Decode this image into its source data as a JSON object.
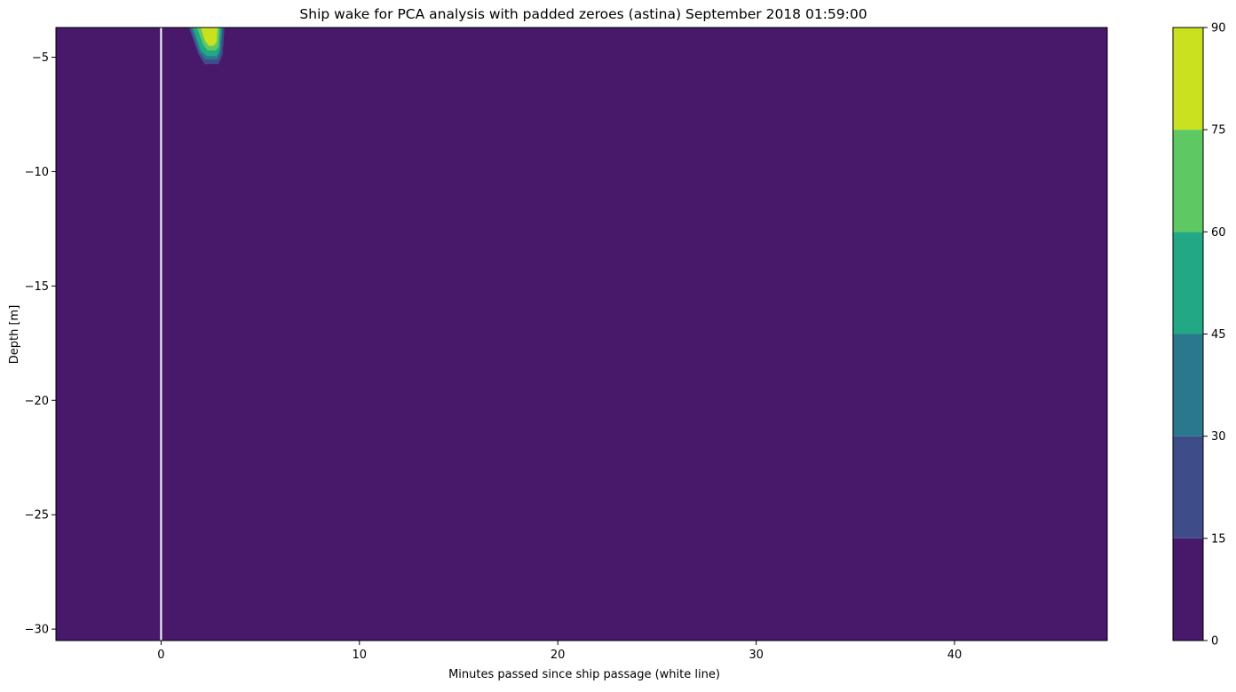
{
  "chart_data": {
    "type": "contourf",
    "title": "Ship wake for PCA analysis with padded zeroes (astina) September 2018 01:59:00",
    "xlabel": "Minutes passed since ship passage (white line)",
    "ylabel": "Depth [m]",
    "xlim": [
      -5.3,
      47.7
    ],
    "ylim": [
      -30.5,
      -3.7
    ],
    "x_ticks": [
      0,
      10,
      20,
      30,
      40
    ],
    "x_tick_labels": [
      "0",
      "10",
      "20",
      "30",
      "40"
    ],
    "y_ticks": [
      -5,
      -10,
      -15,
      -20,
      -25,
      -30
    ],
    "y_tick_labels": [
      "−5",
      "−10",
      "−15",
      "−20",
      "−25",
      "−30"
    ],
    "ship_passage_x": 0,
    "ship_passage_line_color": "#ffffff",
    "colorbar": {
      "levels": [
        0,
        15,
        30,
        45,
        60,
        75,
        90
      ],
      "tick_labels": [
        "0",
        "15",
        "30",
        "45",
        "60",
        "75",
        "90"
      ],
      "colors": [
        "#48186a",
        "#3e4c8a",
        "#2a788e",
        "#22a884",
        "#5ec962",
        "#cae11f"
      ]
    },
    "wake_feature": {
      "description_values": {
        "x_range_minutes": [
          1.4,
          3.2
        ],
        "depth_range_m": [
          -5.3,
          -3.7
        ],
        "peak_level_range": [
          75,
          90
        ]
      },
      "contours": [
        {
          "level_index": 1,
          "points": [
            [
              1.4,
              -3.7
            ],
            [
              3.2,
              -3.7
            ],
            [
              3.1,
              -4.9
            ],
            [
              2.9,
              -5.3
            ],
            [
              2.2,
              -5.3
            ],
            [
              1.9,
              -4.9
            ]
          ]
        },
        {
          "level_index": 2,
          "points": [
            [
              1.5,
              -3.7
            ],
            [
              3.1,
              -3.7
            ],
            [
              3.0,
              -4.8
            ],
            [
              2.85,
              -5.1
            ],
            [
              2.25,
              -5.1
            ],
            [
              1.95,
              -4.8
            ]
          ]
        },
        {
          "level_index": 3,
          "points": [
            [
              1.6,
              -3.7
            ],
            [
              3.05,
              -3.7
            ],
            [
              2.95,
              -4.7
            ],
            [
              2.8,
              -4.95
            ],
            [
              2.3,
              -4.95
            ],
            [
              2.0,
              -4.7
            ]
          ]
        },
        {
          "level_index": 4,
          "points": [
            [
              1.8,
              -3.7
            ],
            [
              2.95,
              -3.7
            ],
            [
              2.9,
              -4.55
            ],
            [
              2.75,
              -4.7
            ],
            [
              2.35,
              -4.7
            ],
            [
              2.15,
              -4.5
            ]
          ]
        },
        {
          "level_index": 5,
          "points": [
            [
              2.0,
              -3.7
            ],
            [
              2.85,
              -3.7
            ],
            [
              2.8,
              -4.35
            ],
            [
              2.65,
              -4.5
            ],
            [
              2.4,
              -4.5
            ],
            [
              2.2,
              -4.25
            ]
          ]
        }
      ]
    },
    "background_level_index": 0
  }
}
